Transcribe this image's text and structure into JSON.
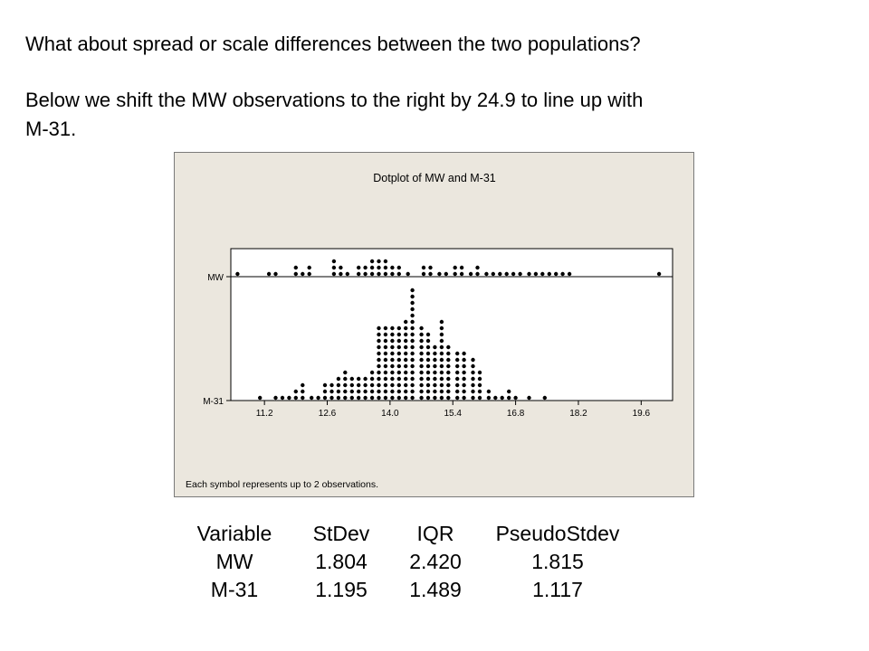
{
  "slide": {
    "line1": "What about spread or scale differences between the two populations?",
    "line2": "Below we shift the MW observations to the right by 24.9 to line up with",
    "line3": "M-31."
  },
  "chart_data": {
    "type": "dotplot",
    "title": "Dotplot of MW and M-31",
    "footnote": "Each symbol represents up to 2 observations.",
    "xticks": [
      11.2,
      12.6,
      14.0,
      15.4,
      16.8,
      18.2,
      19.6
    ],
    "xlim": [
      10.45,
      20.3
    ],
    "series": [
      {
        "name": "MW",
        "points": [
          [
            10.6,
            1
          ],
          [
            11.3,
            1
          ],
          [
            11.45,
            1
          ],
          [
            11.9,
            2
          ],
          [
            12.05,
            1
          ],
          [
            12.2,
            2
          ],
          [
            12.75,
            3
          ],
          [
            12.9,
            2
          ],
          [
            13.05,
            1
          ],
          [
            13.3,
            2
          ],
          [
            13.45,
            2
          ],
          [
            13.6,
            3
          ],
          [
            13.75,
            3
          ],
          [
            13.9,
            3
          ],
          [
            14.05,
            2
          ],
          [
            14.2,
            2
          ],
          [
            14.4,
            1
          ],
          [
            14.75,
            2
          ],
          [
            14.9,
            2
          ],
          [
            15.1,
            1
          ],
          [
            15.25,
            1
          ],
          [
            15.45,
            2
          ],
          [
            15.6,
            2
          ],
          [
            15.8,
            1
          ],
          [
            15.95,
            2
          ],
          [
            16.15,
            1
          ],
          [
            16.3,
            1
          ],
          [
            16.45,
            1
          ],
          [
            16.6,
            1
          ],
          [
            16.75,
            1
          ],
          [
            16.9,
            1
          ],
          [
            17.1,
            1
          ],
          [
            17.25,
            1
          ],
          [
            17.4,
            1
          ],
          [
            17.55,
            1
          ],
          [
            17.7,
            1
          ],
          [
            17.85,
            1
          ],
          [
            18.0,
            1
          ],
          [
            20.0,
            1
          ]
        ]
      },
      {
        "name": "M-31",
        "points": [
          [
            11.1,
            1
          ],
          [
            11.45,
            1
          ],
          [
            11.6,
            1
          ],
          [
            11.75,
            1
          ],
          [
            11.9,
            2
          ],
          [
            12.05,
            3
          ],
          [
            12.25,
            1
          ],
          [
            12.4,
            1
          ],
          [
            12.55,
            3
          ],
          [
            12.7,
            3
          ],
          [
            12.85,
            4
          ],
          [
            13.0,
            5
          ],
          [
            13.15,
            4
          ],
          [
            13.3,
            4
          ],
          [
            13.45,
            4
          ],
          [
            13.6,
            5
          ],
          [
            13.75,
            12
          ],
          [
            13.9,
            12
          ],
          [
            14.05,
            12
          ],
          [
            14.2,
            12
          ],
          [
            14.35,
            13
          ],
          [
            14.5,
            18
          ],
          [
            14.7,
            12
          ],
          [
            14.85,
            11
          ],
          [
            15.0,
            9
          ],
          [
            15.15,
            13
          ],
          [
            15.3,
            9
          ],
          [
            15.5,
            8
          ],
          [
            15.65,
            8
          ],
          [
            15.85,
            7
          ],
          [
            16.0,
            5
          ],
          [
            16.2,
            2
          ],
          [
            16.35,
            1
          ],
          [
            16.5,
            1
          ],
          [
            16.65,
            2
          ],
          [
            16.8,
            1
          ],
          [
            17.1,
            1
          ],
          [
            17.45,
            1
          ]
        ]
      }
    ]
  },
  "stats": {
    "headers": [
      "Variable",
      "StDev",
      "IQR",
      "PseudoStdev"
    ],
    "rows": [
      [
        "MW",
        "1.804",
        "2.420",
        "1.815"
      ],
      [
        "M-31",
        "1.195",
        "1.489",
        "1.117"
      ]
    ]
  }
}
